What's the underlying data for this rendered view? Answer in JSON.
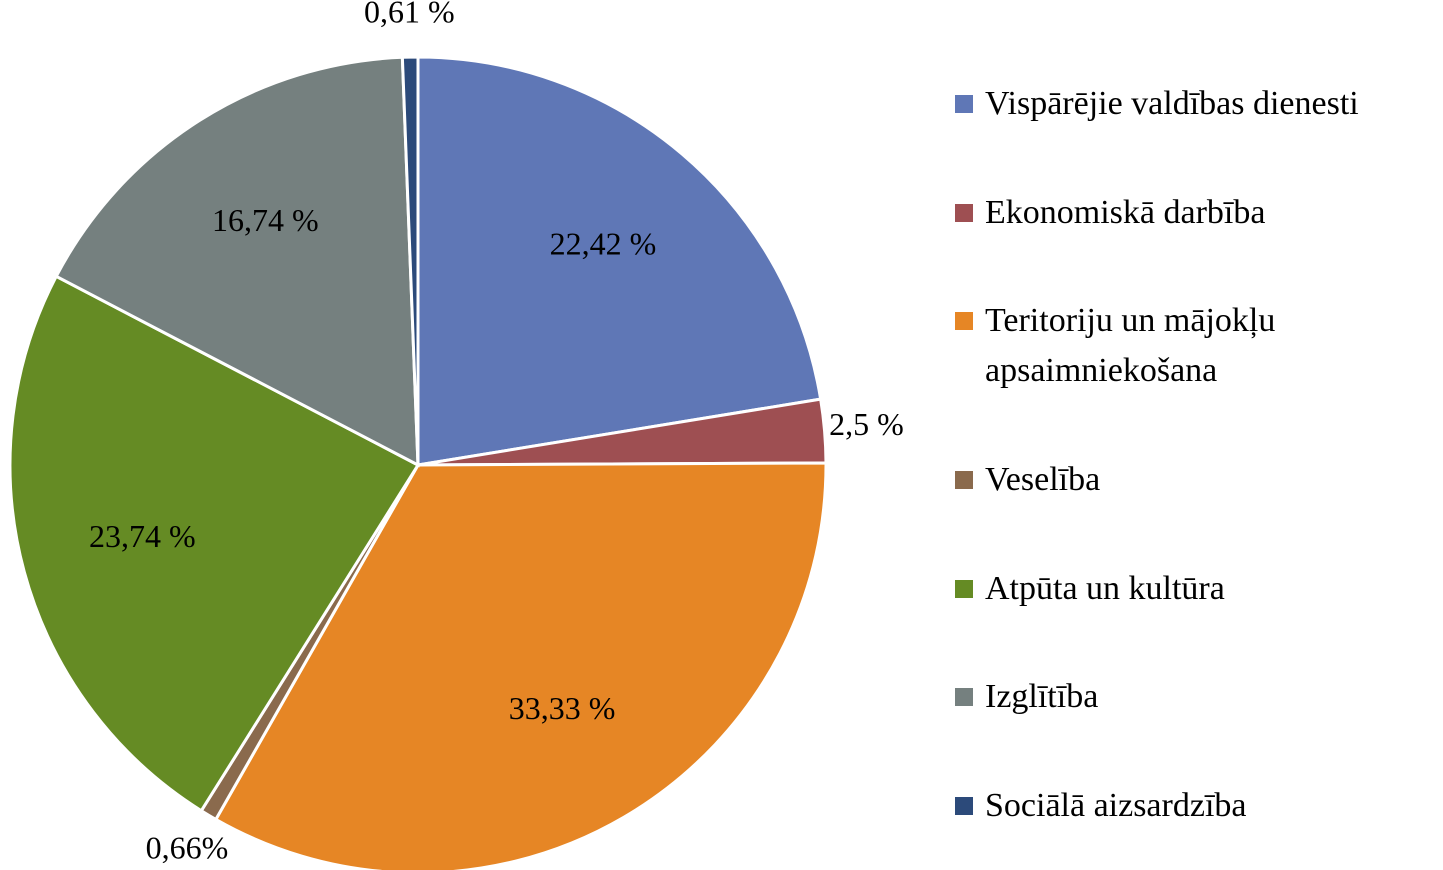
{
  "chart_data": {
    "type": "pie",
    "categories": [
      "Vispārējie valdības dienesti",
      "Ekonomiskā darbība",
      "Teritoriju un mājokļu apsaimniekošana",
      "Veselība",
      "Atpūta un kultūra",
      "Izglītība",
      "Sociālā aizsardzība"
    ],
    "values": [
      22.42,
      2.5,
      33.33,
      0.66,
      23.74,
      16.74,
      0.61
    ],
    "value_labels": [
      "22,42 %",
      "2,5 %",
      "33,33 %",
      "0,66%",
      "23,74 %",
      "16,74 %",
      "0,61 %"
    ],
    "colors": [
      "#5f77b6",
      "#9e4f52",
      "#e68625",
      "#8a6a4d",
      "#658b24",
      "#75807f",
      "#2c4a7a"
    ],
    "legend": "right"
  }
}
